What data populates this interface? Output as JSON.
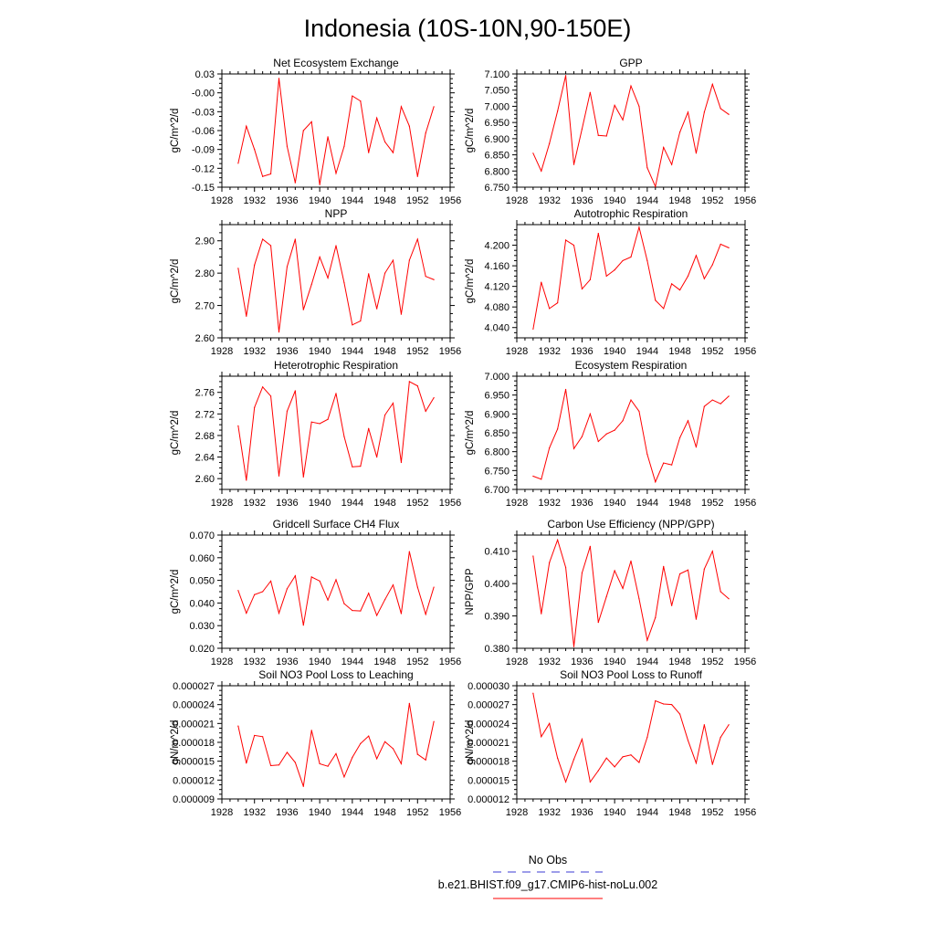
{
  "title": "Indonesia (10S-10N,90-150E)",
  "colors": {
    "model": "#ff0000",
    "obs": "#3b3bd6",
    "axis": "#000000"
  },
  "legend": [
    {
      "label": "No Obs",
      "style": "dashed",
      "color": "#3b3bd6"
    },
    {
      "label": "b.e21.BHIST.f09_g17.CMIP6-hist-noLu.002",
      "style": "solid",
      "color": "#ff0000"
    }
  ],
  "chart_data": [
    {
      "type": "line",
      "title": "Net Ecosystem Exchange",
      "ylabel": "gC/m^2/d",
      "xlim": [
        1928,
        1956
      ],
      "ylim": [
        -0.15,
        0.03
      ],
      "xticks": [
        1928,
        1932,
        1936,
        1940,
        1944,
        1948,
        1952,
        1956
      ],
      "xtick_labels": [
        "1928",
        "1932",
        "1936",
        "1940",
        "1944",
        "1948",
        "1952",
        "1956"
      ],
      "yticks": [
        -0.15,
        -0.12,
        -0.09,
        -0.06,
        -0.03,
        0.0,
        0.03
      ],
      "ytick_labels": [
        "-0.15",
        "-0.12",
        "-0.09",
        "-0.06",
        "-0.03",
        "-0.00",
        "0.03"
      ],
      "x": [
        1930,
        1931,
        1932,
        1933,
        1934,
        1935,
        1936,
        1937,
        1938,
        1939,
        1940,
        1941,
        1942,
        1943,
        1944,
        1945,
        1946,
        1947,
        1948,
        1949,
        1950,
        1951,
        1952,
        1953,
        1954
      ],
      "series": [
        {
          "values": [
            -0.112,
            -0.053,
            -0.09,
            -0.133,
            -0.129,
            0.023,
            -0.085,
            -0.143,
            -0.06,
            -0.046,
            -0.146,
            -0.07,
            -0.128,
            -0.085,
            -0.005,
            -0.013,
            -0.095,
            -0.04,
            -0.078,
            -0.095,
            -0.022,
            -0.053,
            -0.133,
            -0.064,
            -0.022
          ]
        }
      ]
    },
    {
      "type": "line",
      "title": "GPP",
      "ylabel": "gC/m^2/d",
      "xlim": [
        1928,
        1956
      ],
      "ylim": [
        6.75,
        7.1
      ],
      "xticks": [
        1928,
        1932,
        1936,
        1940,
        1944,
        1948,
        1952,
        1956
      ],
      "xtick_labels": [
        "1928",
        "1932",
        "1936",
        "1940",
        "1944",
        "1948",
        "1952",
        "1956"
      ],
      "yticks": [
        6.75,
        6.8,
        6.85,
        6.9,
        6.95,
        7.0,
        7.05,
        7.1
      ],
      "ytick_labels": [
        "6.750",
        "6.800",
        "6.850",
        "6.900",
        "6.950",
        "7.000",
        "7.050",
        "7.100"
      ],
      "x": [
        1930,
        1931,
        1932,
        1933,
        1934,
        1935,
        1936,
        1937,
        1938,
        1939,
        1940,
        1941,
        1942,
        1943,
        1944,
        1945,
        1946,
        1947,
        1948,
        1949,
        1950,
        1951,
        1952,
        1953,
        1954
      ],
      "series": [
        {
          "values": [
            6.855,
            6.8,
            6.885,
            6.985,
            7.095,
            6.82,
            6.93,
            7.043,
            6.91,
            6.908,
            7.003,
            6.958,
            7.063,
            7.0,
            6.81,
            6.752,
            6.873,
            6.82,
            6.92,
            6.982,
            6.855,
            6.982,
            7.068,
            6.993,
            6.975
          ]
        }
      ]
    },
    {
      "type": "line",
      "title": "NPP",
      "ylabel": "gC/m^2/d",
      "xlim": [
        1928,
        1956
      ],
      "ylim": [
        2.6,
        2.95
      ],
      "xticks": [
        1928,
        1932,
        1936,
        1940,
        1944,
        1948,
        1952,
        1956
      ],
      "xtick_labels": [
        "1928",
        "1932",
        "1936",
        "1940",
        "1944",
        "1948",
        "1952",
        "1956"
      ],
      "yticks": [
        2.6,
        2.7,
        2.8,
        2.9
      ],
      "ytick_labels": [
        "2.60",
        "2.70",
        "2.80",
        "2.90"
      ],
      "x": [
        1930,
        1931,
        1932,
        1933,
        1934,
        1935,
        1936,
        1937,
        1938,
        1939,
        1940,
        1941,
        1942,
        1943,
        1944,
        1945,
        1946,
        1947,
        1948,
        1949,
        1950,
        1951,
        1952,
        1953,
        1954
      ],
      "series": [
        {
          "values": [
            2.815,
            2.667,
            2.825,
            2.905,
            2.885,
            2.618,
            2.82,
            2.905,
            2.687,
            2.765,
            2.85,
            2.785,
            2.885,
            2.77,
            2.64,
            2.652,
            2.798,
            2.69,
            2.8,
            2.84,
            2.673,
            2.84,
            2.905,
            2.79,
            2.78
          ]
        }
      ]
    },
    {
      "type": "line",
      "title": "Autotrophic Respiration",
      "ylabel": "gC/m^2/d",
      "xlim": [
        1928,
        1956
      ],
      "ylim": [
        4.02,
        4.24
      ],
      "xticks": [
        1928,
        1932,
        1936,
        1940,
        1944,
        1948,
        1952,
        1956
      ],
      "xtick_labels": [
        "1928",
        "1932",
        "1936",
        "1940",
        "1944",
        "1948",
        "1952",
        "1956"
      ],
      "yticks": [
        4.04,
        4.08,
        4.12,
        4.16,
        4.2
      ],
      "ytick_labels": [
        "4.040",
        "4.080",
        "4.120",
        "4.160",
        "4.200"
      ],
      "x": [
        1930,
        1931,
        1932,
        1933,
        1934,
        1935,
        1936,
        1937,
        1938,
        1939,
        1940,
        1941,
        1942,
        1943,
        1944,
        1945,
        1946,
        1947,
        1948,
        1949,
        1950,
        1951,
        1952,
        1953,
        1954
      ],
      "series": [
        {
          "values": [
            4.037,
            4.128,
            4.077,
            4.088,
            4.21,
            4.2,
            4.115,
            4.133,
            4.223,
            4.14,
            4.152,
            4.17,
            4.177,
            4.235,
            4.17,
            4.093,
            4.077,
            4.125,
            4.113,
            4.14,
            4.18,
            4.135,
            4.162,
            4.202,
            4.195
          ]
        }
      ]
    },
    {
      "type": "line",
      "title": "Heterotrophic Respiration",
      "ylabel": "gC/m^2/d",
      "xlim": [
        1928,
        1956
      ],
      "ylim": [
        2.58,
        2.79
      ],
      "xticks": [
        1928,
        1932,
        1936,
        1940,
        1944,
        1948,
        1952,
        1956
      ],
      "xtick_labels": [
        "1928",
        "1932",
        "1936",
        "1940",
        "1944",
        "1948",
        "1952",
        "1956"
      ],
      "yticks": [
        2.6,
        2.64,
        2.68,
        2.72,
        2.76
      ],
      "ytick_labels": [
        "2.60",
        "2.64",
        "2.68",
        "2.72",
        "2.76"
      ],
      "x": [
        1930,
        1931,
        1932,
        1933,
        1934,
        1935,
        1936,
        1937,
        1938,
        1939,
        1940,
        1941,
        1942,
        1943,
        1944,
        1945,
        1946,
        1947,
        1948,
        1949,
        1950,
        1951,
        1952,
        1953,
        1954
      ],
      "series": [
        {
          "values": [
            2.698,
            2.597,
            2.732,
            2.77,
            2.753,
            2.605,
            2.725,
            2.763,
            2.603,
            2.705,
            2.702,
            2.71,
            2.758,
            2.678,
            2.622,
            2.623,
            2.693,
            2.64,
            2.718,
            2.74,
            2.63,
            2.78,
            2.772,
            2.725,
            2.75
          ]
        }
      ]
    },
    {
      "type": "line",
      "title": "Ecosystem Respiration",
      "ylabel": "gC/m^2/d",
      "xlim": [
        1928,
        1956
      ],
      "ylim": [
        6.7,
        7.0
      ],
      "xticks": [
        1928,
        1932,
        1936,
        1940,
        1944,
        1948,
        1952,
        1956
      ],
      "xtick_labels": [
        "1928",
        "1932",
        "1936",
        "1940",
        "1944",
        "1948",
        "1952",
        "1956"
      ],
      "yticks": [
        6.7,
        6.75,
        6.8,
        6.85,
        6.9,
        6.95,
        7.0
      ],
      "ytick_labels": [
        "6.700",
        "6.750",
        "6.800",
        "6.850",
        "6.900",
        "6.950",
        "7.000"
      ],
      "x": [
        1930,
        1931,
        1932,
        1933,
        1934,
        1935,
        1936,
        1937,
        1938,
        1939,
        1940,
        1941,
        1942,
        1943,
        1944,
        1945,
        1946,
        1947,
        1948,
        1949,
        1950,
        1951,
        1952,
        1953,
        1954
      ],
      "series": [
        {
          "values": [
            6.735,
            6.727,
            6.81,
            6.86,
            6.965,
            6.808,
            6.84,
            6.9,
            6.827,
            6.847,
            6.857,
            6.882,
            6.937,
            6.907,
            6.793,
            6.72,
            6.77,
            6.765,
            6.837,
            6.882,
            6.812,
            6.92,
            6.937,
            6.927,
            6.947
          ]
        }
      ]
    },
    {
      "type": "line",
      "title": "Gridcell Surface CH4 Flux",
      "ylabel": "gC/m^2/d",
      "xlim": [
        1928,
        1956
      ],
      "ylim": [
        0.02,
        0.07
      ],
      "xticks": [
        1928,
        1932,
        1936,
        1940,
        1944,
        1948,
        1952,
        1956
      ],
      "xtick_labels": [
        "1928",
        "1932",
        "1936",
        "1940",
        "1944",
        "1948",
        "1952",
        "1956"
      ],
      "yticks": [
        0.02,
        0.03,
        0.04,
        0.05,
        0.06,
        0.07
      ],
      "ytick_labels": [
        "0.020",
        "0.030",
        "0.040",
        "0.050",
        "0.060",
        "0.070"
      ],
      "x": [
        1930,
        1931,
        1932,
        1933,
        1934,
        1935,
        1936,
        1937,
        1938,
        1939,
        1940,
        1941,
        1942,
        1943,
        1944,
        1945,
        1946,
        1947,
        1948,
        1949,
        1950,
        1951,
        1952,
        1953,
        1954
      ],
      "series": [
        {
          "values": [
            0.0455,
            0.0355,
            0.0437,
            0.045,
            0.0497,
            0.0355,
            0.0463,
            0.052,
            0.0302,
            0.0515,
            0.0497,
            0.0413,
            0.0503,
            0.0397,
            0.0367,
            0.0365,
            0.0443,
            0.0345,
            0.0415,
            0.048,
            0.0353,
            0.0627,
            0.047,
            0.035,
            0.047
          ]
        }
      ]
    },
    {
      "type": "line",
      "title": "Carbon Use Efficiency (NPP/GPP)",
      "ylabel": "NPP/GPP",
      "xlim": [
        1928,
        1956
      ],
      "ylim": [
        0.38,
        0.415
      ],
      "xticks": [
        1928,
        1932,
        1936,
        1940,
        1944,
        1948,
        1952,
        1956
      ],
      "xtick_labels": [
        "1928",
        "1932",
        "1936",
        "1940",
        "1944",
        "1948",
        "1952",
        "1956"
      ],
      "yticks": [
        0.38,
        0.39,
        0.4,
        0.41
      ],
      "ytick_labels": [
        "0.380",
        "0.390",
        "0.400",
        "0.410"
      ],
      "x": [
        1930,
        1931,
        1932,
        1933,
        1934,
        1935,
        1936,
        1937,
        1938,
        1939,
        1940,
        1941,
        1942,
        1943,
        1944,
        1945,
        1946,
        1947,
        1948,
        1949,
        1950,
        1951,
        1952,
        1953,
        1954
      ],
      "series": [
        {
          "values": [
            0.4085,
            0.3907,
            0.4065,
            0.4135,
            0.405,
            0.3805,
            0.4033,
            0.4115,
            0.388,
            0.396,
            0.404,
            0.3985,
            0.407,
            0.3953,
            0.3825,
            0.3895,
            0.4053,
            0.3932,
            0.403,
            0.4042,
            0.389,
            0.4045,
            0.41,
            0.3975,
            0.3953
          ]
        }
      ]
    },
    {
      "type": "line",
      "title": "Soil NO3 Pool Loss to Leaching",
      "ylabel": "gN/m^2/d",
      "xlim": [
        1928,
        1956
      ],
      "ylim": [
        9e-06,
        2.7e-05
      ],
      "xticks": [
        1928,
        1932,
        1936,
        1940,
        1944,
        1948,
        1952,
        1956
      ],
      "xtick_labels": [
        "1928",
        "1932",
        "1936",
        "1940",
        "1944",
        "1948",
        "1952",
        "1956"
      ],
      "yticks": [
        9e-06,
        1.2e-05,
        1.5e-05,
        1.8e-05,
        2.1e-05,
        2.4e-05,
        2.7e-05
      ],
      "ytick_labels": [
        "0.000009",
        "0.000012",
        "0.000015",
        "0.000018",
        "0.000021",
        "0.000024",
        "0.000027"
      ],
      "x": [
        1930,
        1931,
        1932,
        1933,
        1934,
        1935,
        1936,
        1937,
        1938,
        1939,
        1940,
        1941,
        1942,
        1943,
        1944,
        1945,
        1946,
        1947,
        1948,
        1949,
        1950,
        1951,
        1952,
        1953,
        1954
      ],
      "series": [
        {
          "values": [
            2.06e-05,
            1.47e-05,
            1.91e-05,
            1.89e-05,
            1.43e-05,
            1.44e-05,
            1.64e-05,
            1.48e-05,
            1.1e-05,
            1.99e-05,
            1.46e-05,
            1.42e-05,
            1.62e-05,
            1.25e-05,
            1.56e-05,
            1.78e-05,
            1.9e-05,
            1.54e-05,
            1.81e-05,
            1.7e-05,
            1.46e-05,
            2.42e-05,
            1.61e-05,
            1.52e-05,
            2.13e-05
          ]
        }
      ]
    },
    {
      "type": "line",
      "title": "Soil NO3 Pool Loss to Runoff",
      "ylabel": "gN/m^2/d",
      "xlim": [
        1928,
        1956
      ],
      "ylim": [
        1.2e-05,
        3e-05
      ],
      "xticks": [
        1928,
        1932,
        1936,
        1940,
        1944,
        1948,
        1952,
        1956
      ],
      "xtick_labels": [
        "1928",
        "1932",
        "1936",
        "1940",
        "1944",
        "1948",
        "1952",
        "1956"
      ],
      "yticks": [
        1.2e-05,
        1.5e-05,
        1.8e-05,
        2.1e-05,
        2.4e-05,
        2.7e-05,
        3e-05
      ],
      "ytick_labels": [
        "0.000012",
        "0.000015",
        "0.000018",
        "0.000021",
        "0.000024",
        "0.000027",
        "0.000030"
      ],
      "x": [
        1930,
        1931,
        1932,
        1933,
        1934,
        1935,
        1936,
        1937,
        1938,
        1939,
        1940,
        1941,
        1942,
        1943,
        1944,
        1945,
        1946,
        1947,
        1948,
        1949,
        1950,
        1951,
        1952,
        1953,
        1954
      ],
      "series": [
        {
          "values": [
            2.88e-05,
            2.19e-05,
            2.4e-05,
            1.85e-05,
            1.47e-05,
            1.83e-05,
            2.15e-05,
            1.47e-05,
            1.65e-05,
            1.85e-05,
            1.71e-05,
            1.87e-05,
            1.9e-05,
            1.78e-05,
            2.18e-05,
            2.76e-05,
            2.71e-05,
            2.7e-05,
            2.55e-05,
            2.13e-05,
            1.77e-05,
            2.38e-05,
            1.75e-05,
            2.18e-05,
            2.38e-05
          ]
        }
      ]
    }
  ]
}
